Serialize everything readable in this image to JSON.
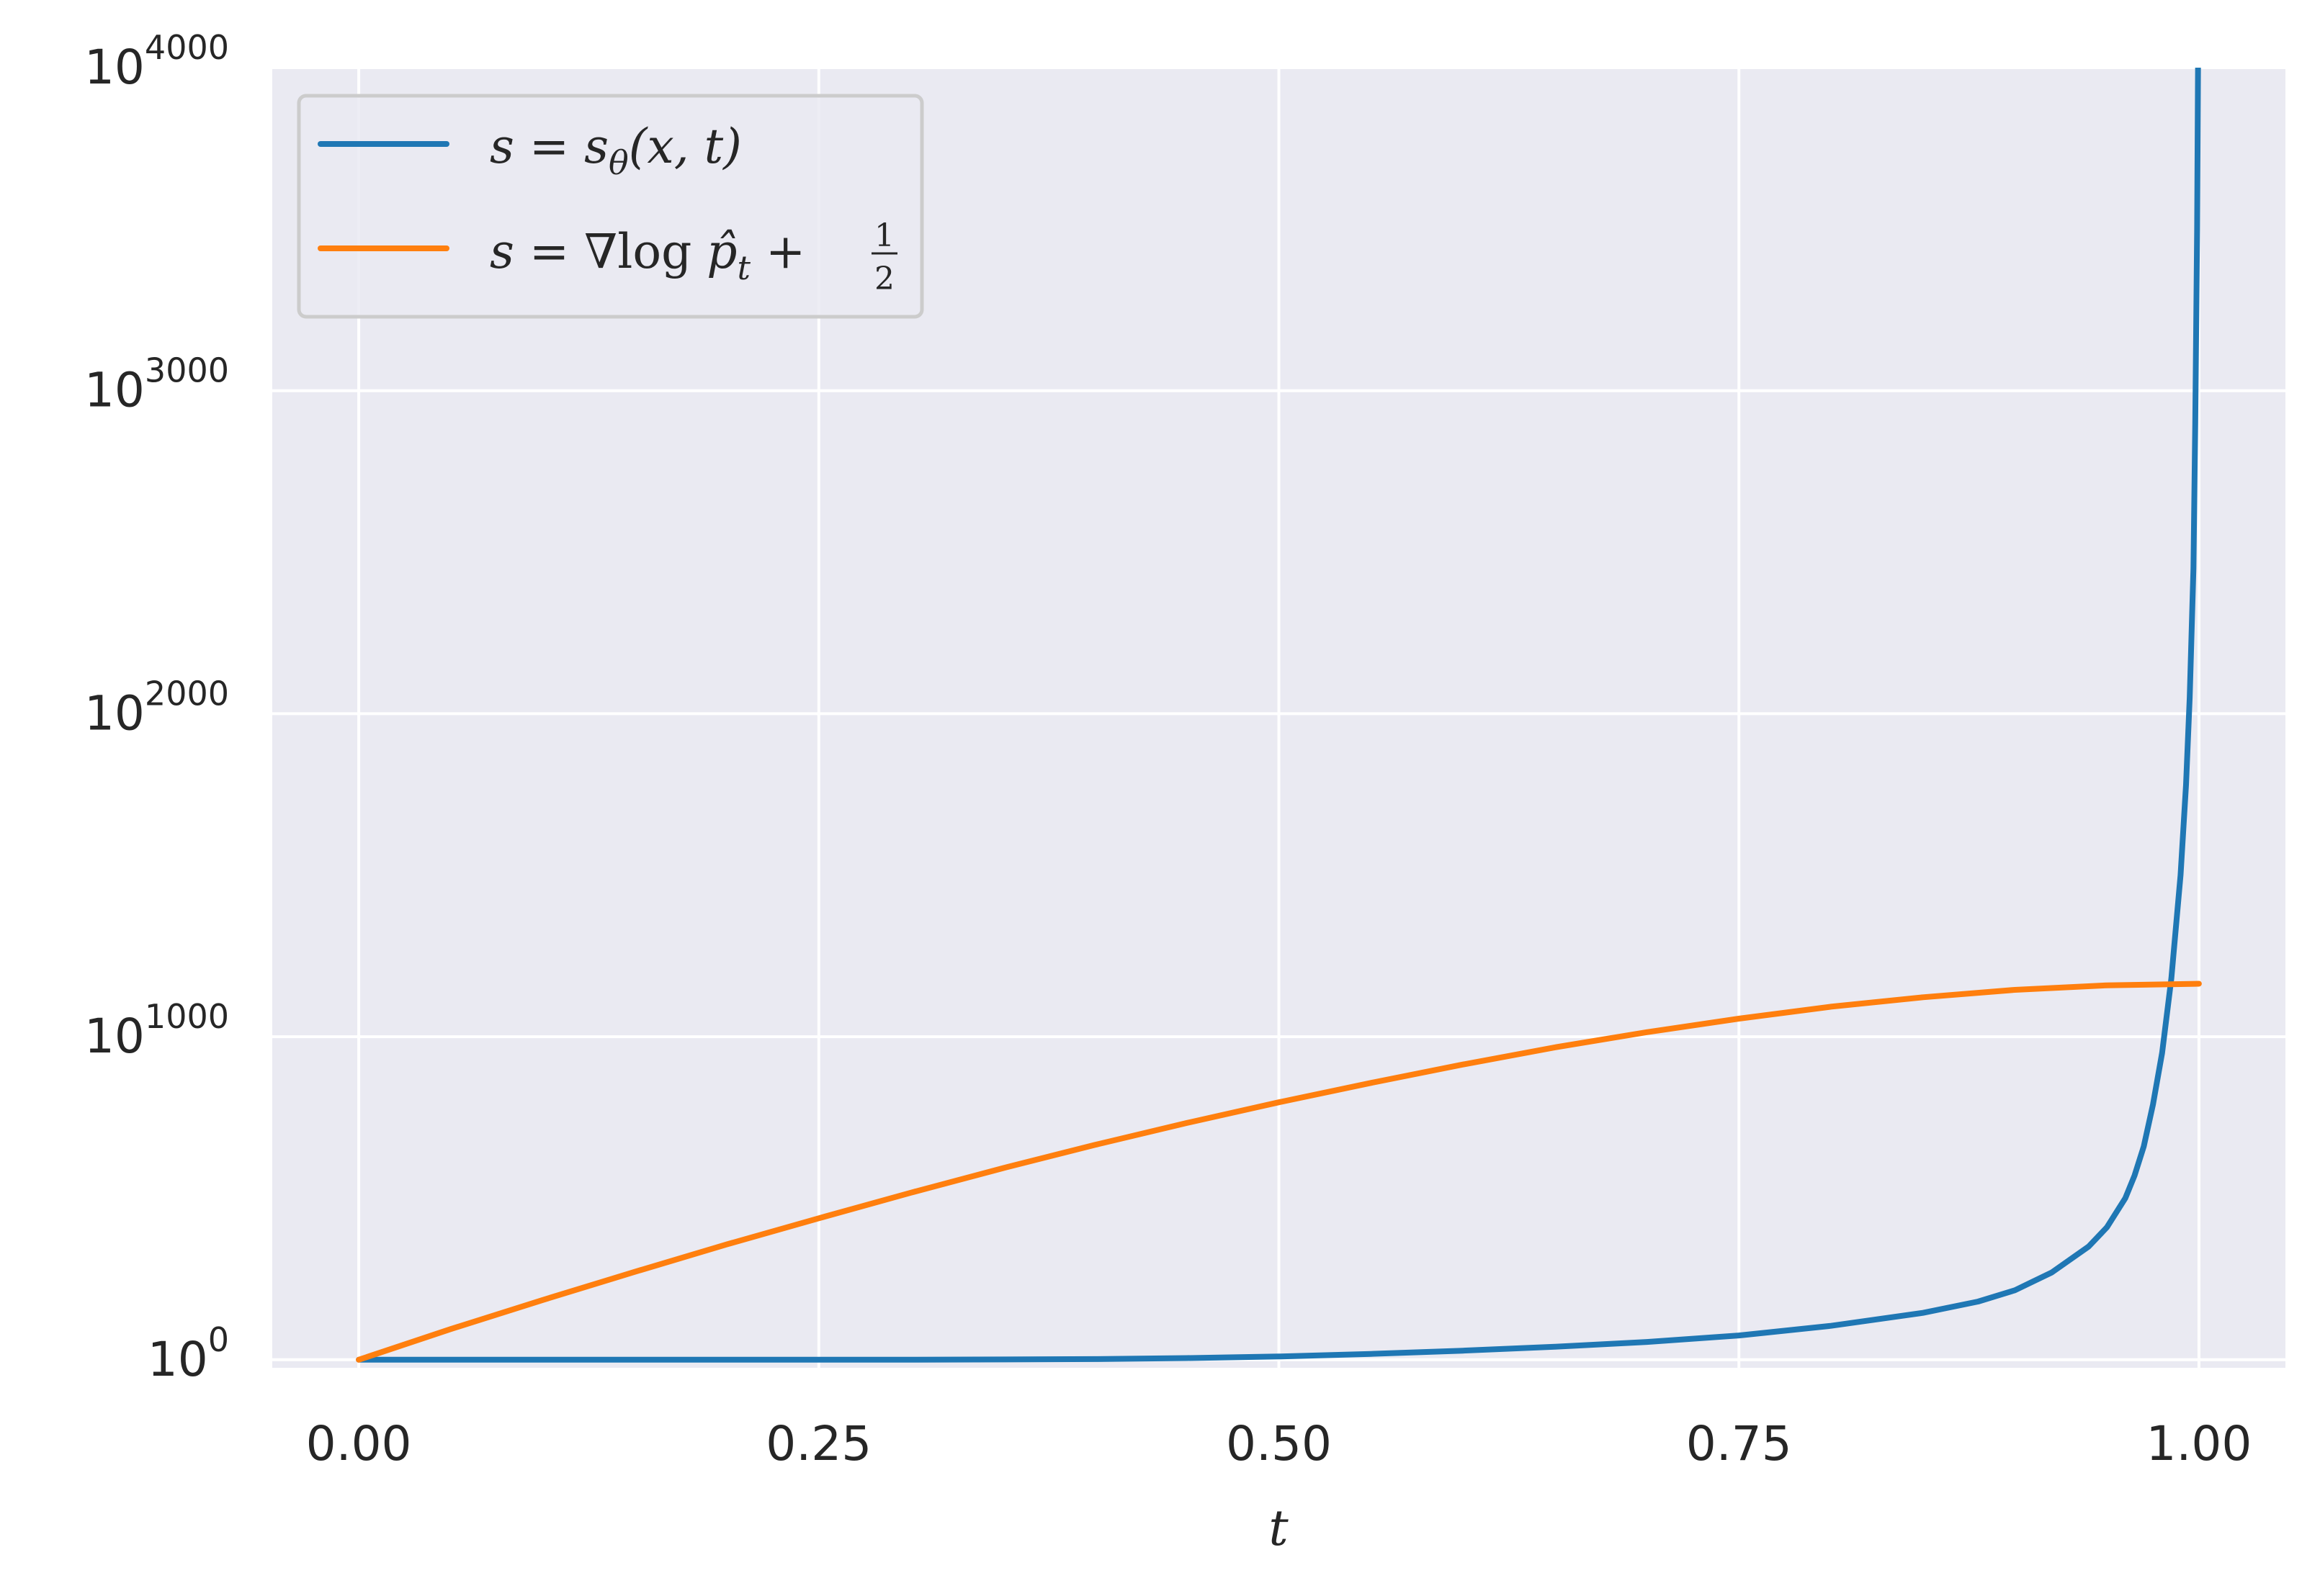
{
  "chart_data": {
    "type": "line",
    "title": "",
    "xlabel": "t",
    "ylabel": "",
    "xlim": [
      -0.047,
      1.047
    ],
    "ylim_exponent": [
      -25,
      4000
    ],
    "yscale": "log",
    "grid": true,
    "legend_position": "top-left",
    "x_ticks": [
      "0.00",
      "0.25",
      "0.50",
      "0.75",
      "1.00"
    ],
    "x_tick_values": [
      0,
      0.25,
      0.5,
      0.75,
      1.0
    ],
    "y_ticks": [
      {
        "base": "10",
        "exponent": "0",
        "value_exponent": 0
      },
      {
        "base": "10",
        "exponent": "1000",
        "value_exponent": 1000
      },
      {
        "base": "10",
        "exponent": "2000",
        "value_exponent": 2000
      },
      {
        "base": "10",
        "exponent": "3000",
        "value_exponent": 3000
      },
      {
        "base": "10",
        "exponent": "4000",
        "value_exponent": 4000
      }
    ],
    "series": [
      {
        "name": "s = sθ(x, t)",
        "color": "#1f77b4",
        "x": [
          0,
          0.1,
          0.2,
          0.3,
          0.4,
          0.45,
          0.5,
          0.55,
          0.6,
          0.65,
          0.7,
          0.75,
          0.8,
          0.85,
          0.88,
          0.9,
          0.92,
          0.94,
          0.95,
          0.96,
          0.965,
          0.97,
          0.975,
          0.98,
          0.985,
          0.99,
          0.993,
          0.995,
          0.997,
          0.998,
          0.999,
          1.0
        ],
        "log10_y": [
          0,
          0,
          0,
          0,
          2,
          5,
          10,
          18,
          28,
          40,
          55,
          75,
          105,
          145,
          180,
          215,
          270,
          350,
          410,
          500,
          570,
          660,
          790,
          950,
          1180,
          1500,
          1780,
          2050,
          2450,
          2900,
          3500,
          4500
        ]
      },
      {
        "name": "s = ∇log p̂t + 1/2",
        "color": "#ff7f0e",
        "x": [
          0,
          0.05,
          0.1,
          0.15,
          0.2,
          0.25,
          0.3,
          0.35,
          0.4,
          0.45,
          0.5,
          0.55,
          0.6,
          0.65,
          0.7,
          0.75,
          0.8,
          0.85,
          0.9,
          0.95,
          1.0
        ],
        "log10_y": [
          0,
          95,
          185,
          272,
          357,
          438,
          517,
          593,
          665,
          733,
          797,
          857,
          914,
          967,
          1014,
          1056,
          1093,
          1122,
          1145,
          1159,
          1164
        ]
      }
    ]
  },
  "legend": {
    "entries": [
      {
        "color": "#1f77b4",
        "lhs": "s",
        "eq": " = ",
        "rhs_main": "s",
        "rhs_sub": "θ",
        "rhs_tail": "(x, t)"
      },
      {
        "color": "#ff7f0e",
        "lhs": "s",
        "eq": " = ",
        "rhs_main": "∇log ",
        "rhs_p": "p̂",
        "rhs_sub": "t",
        "rhs_plus": " + ",
        "frac_num": "1",
        "frac_den": "2"
      }
    ]
  },
  "colors": {
    "plot_background": "#eaeaf2",
    "grid": "#ffffff",
    "text": "#262626"
  }
}
